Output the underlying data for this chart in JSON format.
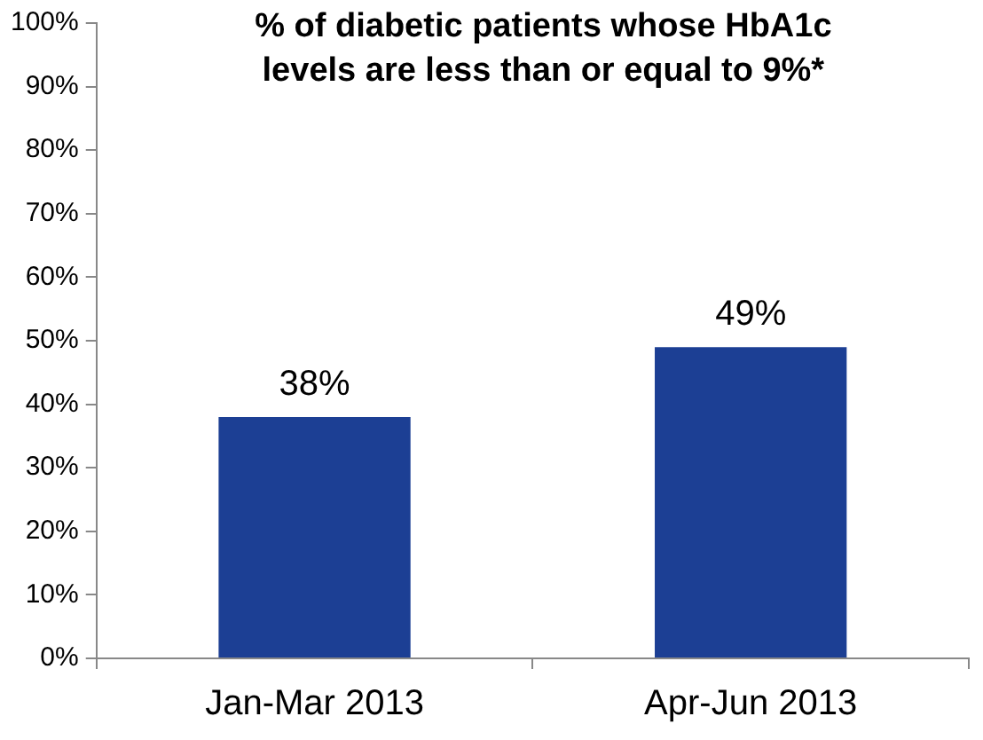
{
  "chart_data": {
    "type": "bar",
    "title": "% of diabetic patients whose HbA1c levels are less than or equal to 9%*",
    "categories": [
      "Jan-Mar 2013",
      "Apr-Jun 2013"
    ],
    "values": [
      38,
      49
    ],
    "color": "#1c3f94",
    "value_labels": [
      "38%",
      "49%"
    ],
    "ylim": [
      0,
      100
    ],
    "yticks": [
      {
        "value": 0,
        "label": "0%"
      },
      {
        "value": 10,
        "label": "10%"
      },
      {
        "value": 20,
        "label": "20%"
      },
      {
        "value": 30,
        "label": "30%"
      },
      {
        "value": 40,
        "label": "40%"
      },
      {
        "value": 50,
        "label": "50%"
      },
      {
        "value": 60,
        "label": "60%"
      },
      {
        "value": 70,
        "label": "70%"
      },
      {
        "value": 80,
        "label": "80%"
      },
      {
        "value": 90,
        "label": "90%"
      },
      {
        "value": 100,
        "label": "100%"
      }
    ],
    "grid": false,
    "legend": false
  }
}
